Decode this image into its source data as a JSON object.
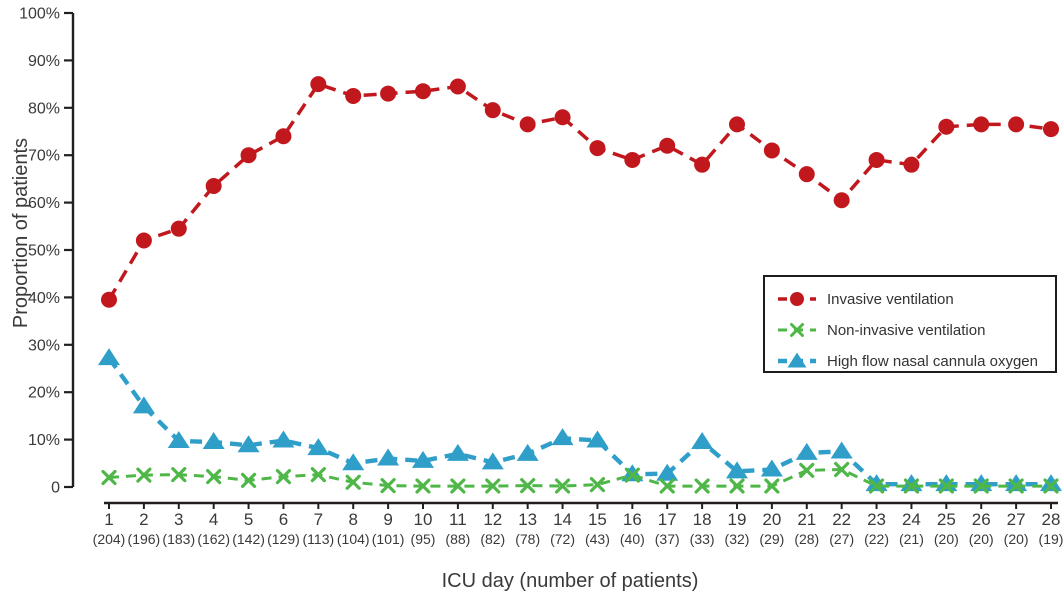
{
  "chart_data": {
    "type": "line",
    "title": "",
    "xlabel": "ICU day (number of patients)",
    "ylabel": "Proportion of patients",
    "ylim": [
      0,
      100
    ],
    "grid": false,
    "legend_position": "middle-right",
    "y_ticks": [
      {
        "value": 0,
        "label": "0"
      },
      {
        "value": 10,
        "label": "10%"
      },
      {
        "value": 20,
        "label": "20%"
      },
      {
        "value": 30,
        "label": "30%"
      },
      {
        "value": 40,
        "label": "40%"
      },
      {
        "value": 50,
        "label": "50%"
      },
      {
        "value": 60,
        "label": "60%"
      },
      {
        "value": 70,
        "label": "70%"
      },
      {
        "value": 80,
        "label": "80%"
      },
      {
        "value": 90,
        "label": "90%"
      },
      {
        "value": 100,
        "label": "100%"
      }
    ],
    "days": [
      1,
      2,
      3,
      4,
      5,
      6,
      7,
      8,
      9,
      10,
      11,
      12,
      13,
      14,
      15,
      16,
      17,
      18,
      19,
      20,
      21,
      22,
      23,
      24,
      25,
      26,
      27,
      28
    ],
    "patients": [
      204,
      196,
      183,
      162,
      142,
      129,
      113,
      104,
      101,
      95,
      88,
      82,
      78,
      72,
      43,
      40,
      37,
      33,
      32,
      29,
      28,
      27,
      22,
      21,
      20,
      20,
      20,
      19
    ],
    "series": [
      {
        "name": "Invasive ventilation",
        "marker": "circle",
        "color": "#c1181d",
        "values": [
          39.5,
          52,
          54.5,
          63.5,
          70,
          74,
          85,
          82.5,
          83,
          83.5,
          84.5,
          79.5,
          76.5,
          78,
          71.5,
          69,
          72,
          68,
          76.5,
          71,
          66,
          60.5,
          69,
          68,
          76,
          76.5,
          76.5,
          75.5
        ]
      },
      {
        "name": "Non-invasive ventilation",
        "marker": "x",
        "color": "#4eb748",
        "values": [
          2,
          2.5,
          2.6,
          2.2,
          1.4,
          2.2,
          2.6,
          1,
          0.3,
          0.2,
          0.2,
          0.2,
          0.3,
          0.2,
          0.5,
          2.5,
          0.2,
          0.2,
          0.2,
          0.2,
          3.5,
          3.7,
          0.2,
          0.2,
          0.2,
          0.2,
          0.2,
          0.2
        ]
      },
      {
        "name": "High flow nasal cannula oxygen",
        "marker": "triangle",
        "color": "#2f9fca",
        "values": [
          27.2,
          17,
          9.7,
          9.5,
          8.8,
          9.8,
          8.2,
          5,
          6,
          5.5,
          7,
          5.2,
          7,
          10.3,
          9.8,
          2.7,
          2.8,
          9.5,
          3.3,
          3.7,
          7.2,
          7.5,
          0.6,
          0.6,
          0.6,
          0.6,
          0.6,
          0.6
        ]
      }
    ],
    "axis_color": "#231f20",
    "text_color": "#3a3a3a"
  }
}
